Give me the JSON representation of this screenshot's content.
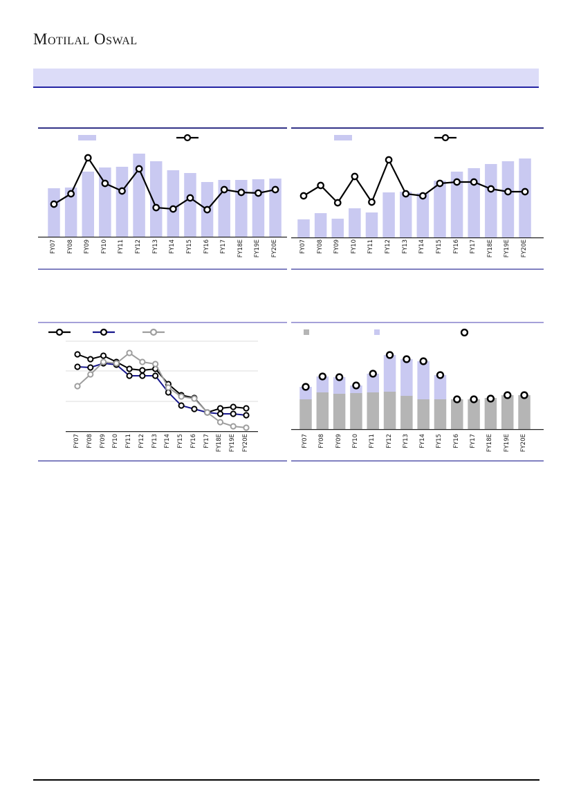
{
  "page": {
    "logo": "Motilal Oswal",
    "banner_text": "",
    "colors": {
      "lavender": "#c9c9f1",
      "black": "#000000",
      "navy": "#16168c",
      "gray": "#9e9e9e",
      "gray_bar": "#b5b5b5",
      "banner_bg": "#dcdcf8",
      "banner_border": "#2323a3",
      "border_dark": "#333387",
      "border_light": "#a5a0d8",
      "border_bottom": "#8080c0",
      "gridline": "#dcdcdc",
      "axis": "#222222"
    }
  },
  "chart_data": [
    {
      "id": "top-left",
      "type": "bar",
      "title": "",
      "categories": [
        "FY07",
        "FY08",
        "FY09",
        "FY10",
        "FY11",
        "FY12",
        "FY13",
        "FY14",
        "FY15",
        "FY16",
        "FY17",
        "FY18E",
        "FY19E",
        "FY20E"
      ],
      "series": [
        {
          "name": "bar-series",
          "kind": "bar",
          "color": "lavender",
          "values": [
            70,
            71,
            94,
            100,
            101,
            120,
            109,
            96,
            92,
            79,
            82,
            82,
            83,
            84
          ]
        },
        {
          "name": "line-series",
          "kind": "line",
          "color": "black",
          "marker_color": "black",
          "values": [
            47,
            62,
            114,
            77,
            66,
            98,
            42,
            40,
            56,
            39,
            68,
            64,
            63,
            68
          ]
        }
      ],
      "ylim": [
        0,
        140
      ],
      "y_axis_labels_visible": false,
      "legend": [
        {
          "icon": "bar-swatch",
          "color": "lavender",
          "label": ""
        },
        {
          "icon": "line-marker-swatch",
          "color": "black",
          "marker_color": "black",
          "label": ""
        }
      ]
    },
    {
      "id": "top-right",
      "type": "bar",
      "title": "",
      "categories": [
        "FY07",
        "FY08",
        "FY09",
        "FY10",
        "FY11",
        "FY12",
        "FY13",
        "FY14",
        "FY15",
        "FY16",
        "FY17",
        "FY18E",
        "FY19E",
        "FY20E"
      ],
      "series": [
        {
          "name": "bar-series",
          "kind": "bar",
          "color": "lavender",
          "values": [
            26,
            35,
            27,
            42,
            36,
            65,
            66,
            64,
            82,
            95,
            100,
            106,
            110,
            114
          ]
        },
        {
          "name": "line-series",
          "kind": "line",
          "color": "black",
          "marker_color": "black",
          "values": [
            60,
            75,
            50,
            88,
            51,
            112,
            63,
            60,
            78,
            80,
            80,
            70,
            66,
            66
          ]
        }
      ],
      "ylim": [
        0,
        140
      ],
      "y_axis_labels_visible": false,
      "legend": [
        {
          "icon": "bar-swatch",
          "color": "lavender",
          "label": ""
        },
        {
          "icon": "line-marker-swatch",
          "color": "black",
          "marker_color": "black",
          "label": ""
        }
      ]
    },
    {
      "id": "bottom-left",
      "type": "line",
      "title": "",
      "categories": [
        "FY07",
        "FY08",
        "FY09",
        "FY10",
        "FY11",
        "FY12",
        "FY13",
        "FY14",
        "FY15",
        "FY16",
        "FY17",
        "FY18E",
        "FY19E",
        "FY20E"
      ],
      "series": [
        {
          "name": "black-line-series",
          "kind": "line",
          "color": "black",
          "marker_color": "black",
          "values": [
            111,
            104,
            109,
            100,
            90,
            88,
            90,
            68,
            52,
            48,
            27,
            33,
            35,
            33
          ]
        },
        {
          "name": "navy-line-series",
          "kind": "line",
          "color": "navy",
          "marker_color": "black",
          "values": [
            93,
            92,
            98,
            96,
            80,
            80,
            80,
            56,
            37,
            32,
            27,
            25,
            25,
            23
          ]
        },
        {
          "name": "gray-line-series",
          "kind": "line",
          "color": "gray",
          "marker_color": "gray",
          "values": [
            65,
            82,
            100,
            98,
            113,
            100,
            97,
            63,
            50,
            47,
            27,
            13,
            7,
            5
          ]
        }
      ],
      "ylim": [
        0,
        140
      ],
      "grid": true,
      "y_axis_labels_visible": false,
      "legend": [
        {
          "icon": "line-marker-swatch",
          "color": "black",
          "marker_color": "black",
          "label": ""
        },
        {
          "icon": "line-marker-swatch",
          "color": "navy",
          "marker_color": "black",
          "label": ""
        },
        {
          "icon": "line-marker-swatch",
          "color": "gray",
          "marker_color": "gray",
          "label": ""
        }
      ]
    },
    {
      "id": "bottom-right",
      "type": "bar",
      "title": "",
      "categories": [
        "FY07",
        "FY08",
        "FY09",
        "FY10",
        "FY11",
        "FY12",
        "FY13",
        "FY14",
        "FY15",
        "FY16",
        "FY17",
        "FY18E",
        "FY19E",
        "FY20E"
      ],
      "series": [
        {
          "name": "gray-stack-series",
          "kind": "bar",
          "stack": true,
          "color": "gray_bar",
          "values": [
            43,
            53,
            51,
            52,
            53,
            54,
            48,
            43,
            43,
            43,
            43,
            45,
            49,
            49
          ]
        },
        {
          "name": "lavender-stack-series",
          "kind": "bar",
          "stack": true,
          "color": "lavender",
          "values": [
            18,
            23,
            24,
            11,
            27,
            53,
            53,
            55,
            35,
            0,
            0,
            0,
            0,
            0
          ]
        },
        {
          "name": "total-marker-series",
          "kind": "scatter",
          "color": "black",
          "marker_color": "black",
          "values": [
            61,
            76,
            75,
            63,
            80,
            107,
            101,
            98,
            78,
            43,
            43,
            44,
            49,
            49
          ]
        }
      ],
      "ylim": [
        0,
        140
      ],
      "y_axis_labels_visible": false,
      "legend": [
        {
          "icon": "square-swatch",
          "color": "gray_bar",
          "label": ""
        },
        {
          "icon": "square-swatch",
          "color": "lavender",
          "label": ""
        },
        {
          "icon": "circle-marker-swatch",
          "color": "black",
          "marker_color": "black",
          "label": ""
        }
      ]
    }
  ]
}
